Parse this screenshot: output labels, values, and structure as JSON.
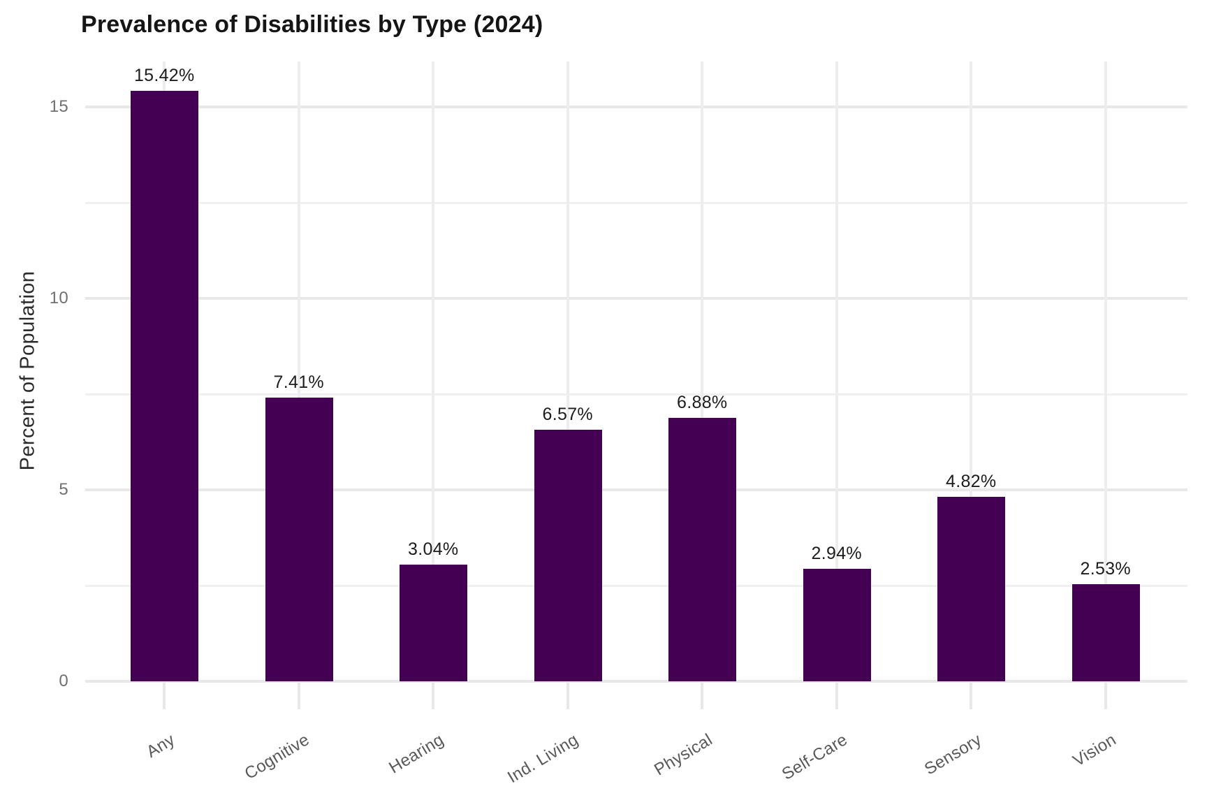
{
  "title": "Prevalence of Disabilities by Type (2024)",
  "chart_data": {
    "type": "bar",
    "title": "Prevalence of Disabilities by Type (2024)",
    "xlabel": "",
    "ylabel": "Percent of Population",
    "categories": [
      "Any",
      "Cognitive",
      "Hearing",
      "Ind. Living",
      "Physical",
      "Self-Care",
      "Sensory",
      "Vision"
    ],
    "values": [
      15.42,
      7.41,
      3.04,
      6.57,
      6.88,
      2.94,
      4.82,
      2.53
    ],
    "value_labels": [
      "15.42%",
      "7.41%",
      "3.04%",
      "6.57%",
      "6.88%",
      "2.94%",
      "4.82%",
      "2.53%"
    ],
    "yticks": [
      0,
      5,
      10,
      15
    ],
    "ytick_labels": [
      "0",
      "5",
      "10",
      "15"
    ],
    "minor_yticks": [
      2.5,
      7.5,
      12.5
    ],
    "ylim": [
      0,
      16.2
    ],
    "grid": true,
    "legend": false,
    "bar_color": "#440154",
    "gridline_color": "#e8e8e8",
    "minor_gridline_color": "#f0f0f0",
    "title_color": "#151515",
    "axis_label_color": "#2b2b2b",
    "tick_label_color": "#707070",
    "x_tick_label_color": "#595959",
    "value_label_color": "#1d1d1d"
  }
}
